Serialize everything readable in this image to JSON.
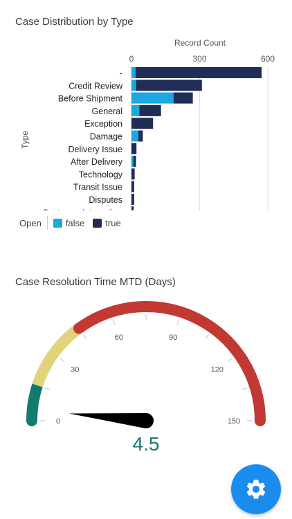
{
  "bar_section": {
    "title": "Case Distribution by Type"
  },
  "legend": {
    "title": "Open",
    "items": [
      {
        "label": "false",
        "color": "#1ba7e0"
      },
      {
        "label": "true",
        "color": "#1f2d57"
      }
    ]
  },
  "gauge_section": {
    "title": "Case Resolution Time MTD (Days)"
  },
  "fab": {
    "icon": "gear-icon",
    "color": "#1a8cf0"
  },
  "chart_data": [
    {
      "type": "bar",
      "orientation": "horizontal",
      "stacked": true,
      "title": "Case Distribution by Type",
      "xlabel": "Record Count",
      "ylabel": "Type",
      "xlim": [
        0,
        600
      ],
      "xticks": [
        0,
        300,
        600
      ],
      "categories": [
        "-",
        "Credit Review",
        "Before Shipment",
        "General",
        "Exception",
        "Damage",
        "Delivery Issue",
        "After Delivery",
        "Technology",
        "Transit Issue",
        "Disputes",
        "Customer Interaction"
      ],
      "series": [
        {
          "name": "false",
          "color": "#1ba7e0",
          "values": [
            18,
            20,
            185,
            35,
            0,
            30,
            0,
            8,
            0,
            0,
            0,
            0
          ]
        },
        {
          "name": "true",
          "color": "#1f2d57",
          "values": [
            555,
            290,
            85,
            95,
            95,
            20,
            22,
            12,
            14,
            12,
            12,
            10
          ]
        }
      ],
      "legend_title": "Open"
    },
    {
      "type": "gauge",
      "title": "Case Resolution Time MTD (Days)",
      "min": 0,
      "max": 150,
      "ticks": [
        0,
        30,
        60,
        90,
        120,
        150
      ],
      "bands": [
        {
          "from": 0,
          "to": 15,
          "color": "#157a6e"
        },
        {
          "from": 15,
          "to": 45,
          "color": "#e1d27c"
        },
        {
          "from": 45,
          "to": 150,
          "color": "#c23934"
        }
      ],
      "value": 4.5,
      "value_label": "4.5",
      "value_color": "#157a6e"
    }
  ]
}
